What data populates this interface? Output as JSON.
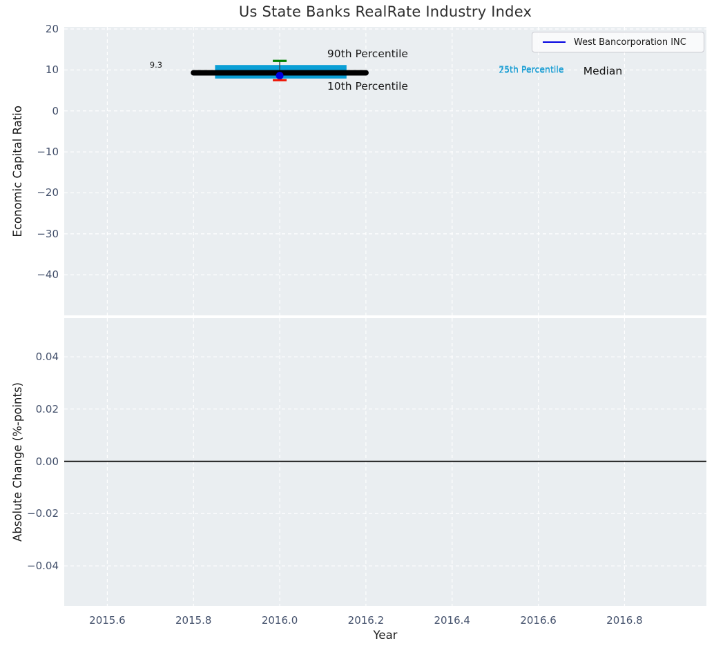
{
  "chart_data": {
    "type": "line",
    "title": "Us State Banks RealRate Industry Index",
    "xlabel": "Year",
    "xlim": [
      2015.5,
      2016.99
    ],
    "xticks": [
      2015.6,
      2015.8,
      2016.0,
      2016.2,
      2016.4,
      2016.6,
      2016.8
    ],
    "xtick_labels": [
      "2015.6",
      "2015.8",
      "2016.0",
      "2016.2",
      "2016.4",
      "2016.6",
      "2016.8"
    ],
    "grid": {
      "style": "dashed",
      "color": "#ffffff"
    },
    "axes_background": "#eaeef1",
    "legend": {
      "position": "upper right",
      "entries": [
        {
          "label": "West Bancorporation INC",
          "color": "#0000e0"
        }
      ]
    },
    "subplots": [
      {
        "ylabel": "Economic Capital Ratio",
        "ylim": [
          -49.9,
          20.5
        ],
        "yticks": [
          20,
          10,
          0,
          -10,
          -20,
          -30,
          -40
        ],
        "ytick_labels": [
          "20",
          "10",
          "0",
          "−10",
          "−20",
          "−30",
          "−40"
        ],
        "industry_percentiles": {
          "x_range": [
            2015.8,
            2016.2
          ],
          "iqr_x_range": [
            2015.85,
            2016.155
          ],
          "whisker_x": 2016.0,
          "median": 9.3,
          "median_label": "9.3",
          "p90": 12.2,
          "p75": 11.2,
          "p25": 7.9,
          "p10": 7.5,
          "colors": {
            "median": "#000000",
            "iqr_band": "#0a9fd6",
            "p90_cap": "#008000",
            "p10_cap": "#ee1100",
            "whisker": "#37474f"
          }
        },
        "series": [
          {
            "name": "West Bancorporation INC",
            "x": [
              2016.0
            ],
            "y": [
              8.6
            ],
            "color": "#0000e0",
            "marker": "circle"
          }
        ],
        "annotations": [
          {
            "text": "9.3",
            "x": 2015.713,
            "y": 11.3,
            "color": "#222222",
            "size": 11.5,
            "anchor": "middle"
          },
          {
            "text": "90th Percentile",
            "x": 2016.204,
            "y": 14.0,
            "color": "#1a1a1a",
            "size": 15.5,
            "anchor": "middle"
          },
          {
            "text": "10th Percentile",
            "x": 2016.204,
            "y": 6.1,
            "color": "#1a1a1a",
            "size": 15.5,
            "anchor": "middle"
          },
          {
            "text": "75th Percentile",
            "x": 2016.508,
            "y": 10.3,
            "color": "#1e9fd4",
            "size": 12.5,
            "anchor": "start"
          },
          {
            "text": "25th Percentile",
            "x": 2016.508,
            "y": 10.0,
            "color": "#1e9fd4",
            "size": 12.5,
            "anchor": "start"
          },
          {
            "text": "Median",
            "x": 2016.7045,
            "y": 9.72,
            "color": "#111111",
            "size": 15.5,
            "anchor": "start"
          }
        ]
      },
      {
        "ylabel": "Absolute Change (%-points)",
        "ylim": [
          -0.0553,
          0.0548
        ],
        "yticks": [
          0.04,
          0.02,
          0.0,
          -0.02,
          -0.04
        ],
        "ytick_labels": [
          "0.04",
          "0.02",
          "0.00",
          "−0.02",
          "−0.04"
        ],
        "zero_line": {
          "y": 0.0,
          "color": "#000000"
        },
        "series": []
      }
    ]
  }
}
